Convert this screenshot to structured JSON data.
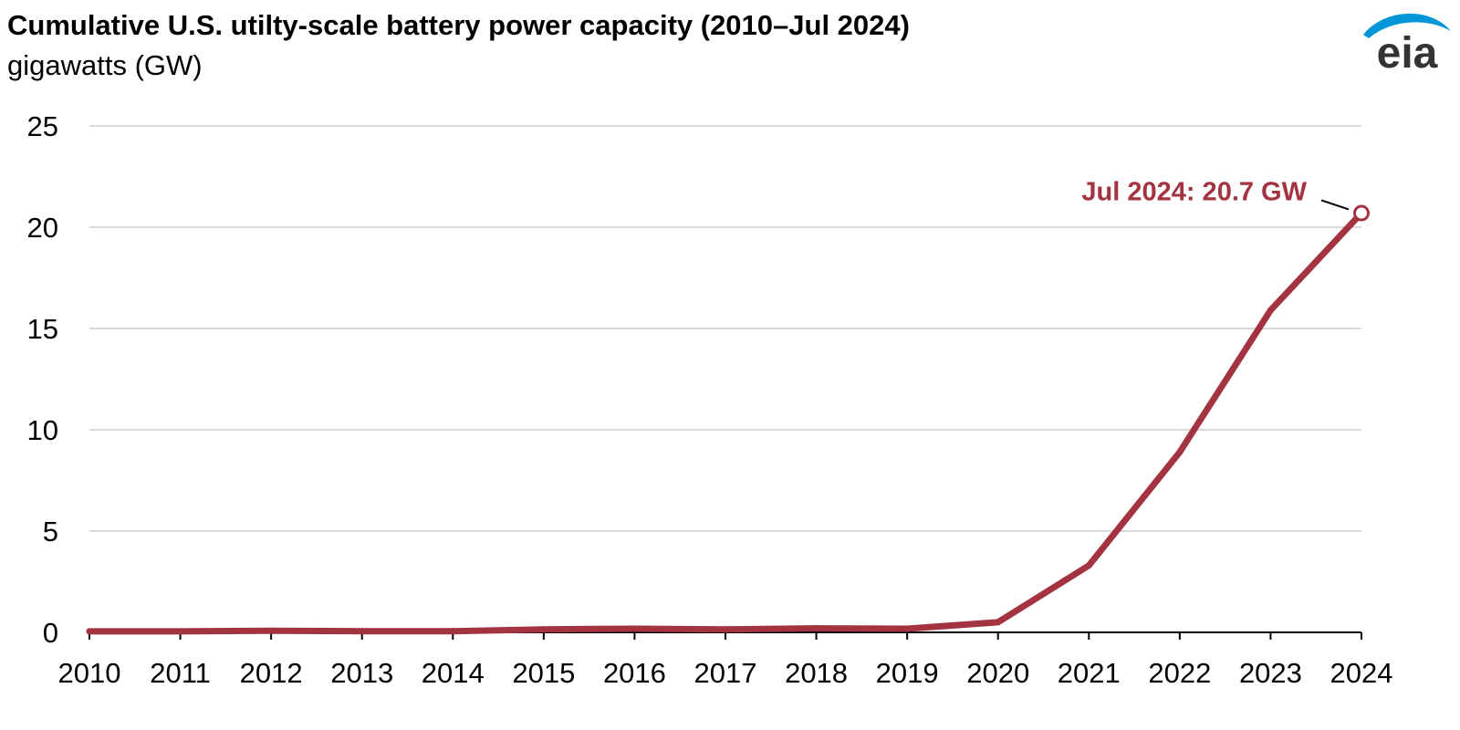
{
  "header": {
    "title": "Cumulative U.S. utilty-scale battery power capacity (2010–Jul 2024)",
    "subtitle": "gigawatts (GW)"
  },
  "logo": {
    "text": "eia",
    "icon": "eia-logo-icon",
    "swoosh_color": "#0096d7",
    "text_color": "#333333"
  },
  "colors": {
    "series": "#a33340",
    "grid": "#d9d9d9",
    "axis": "#000000"
  },
  "chart_data": {
    "type": "line",
    "title": "Cumulative U.S. utilty-scale battery power capacity (2010–Jul 2024)",
    "ylabel": "gigawatts (GW)",
    "xlabel": "",
    "x": [
      "2010",
      "2011",
      "2012",
      "2013",
      "2014",
      "2015",
      "2016",
      "2017",
      "2018",
      "2019",
      "2020",
      "2021",
      "2022",
      "2023",
      "2024"
    ],
    "series": [
      {
        "values": [
          0.05,
          0.05,
          0.08,
          0.06,
          0.06,
          0.15,
          0.18,
          0.15,
          0.2,
          0.18,
          0.5,
          3.3,
          8.9,
          15.9,
          20.7
        ]
      }
    ],
    "ylim": [
      0,
      25
    ],
    "yticks": [
      "0",
      "5",
      "10",
      "15",
      "20",
      "25"
    ],
    "grid": true,
    "legend": "none",
    "annotations": [
      {
        "label": "Jul 2024: 20.7 GW",
        "x": "2024",
        "y": 20.7
      }
    ]
  }
}
